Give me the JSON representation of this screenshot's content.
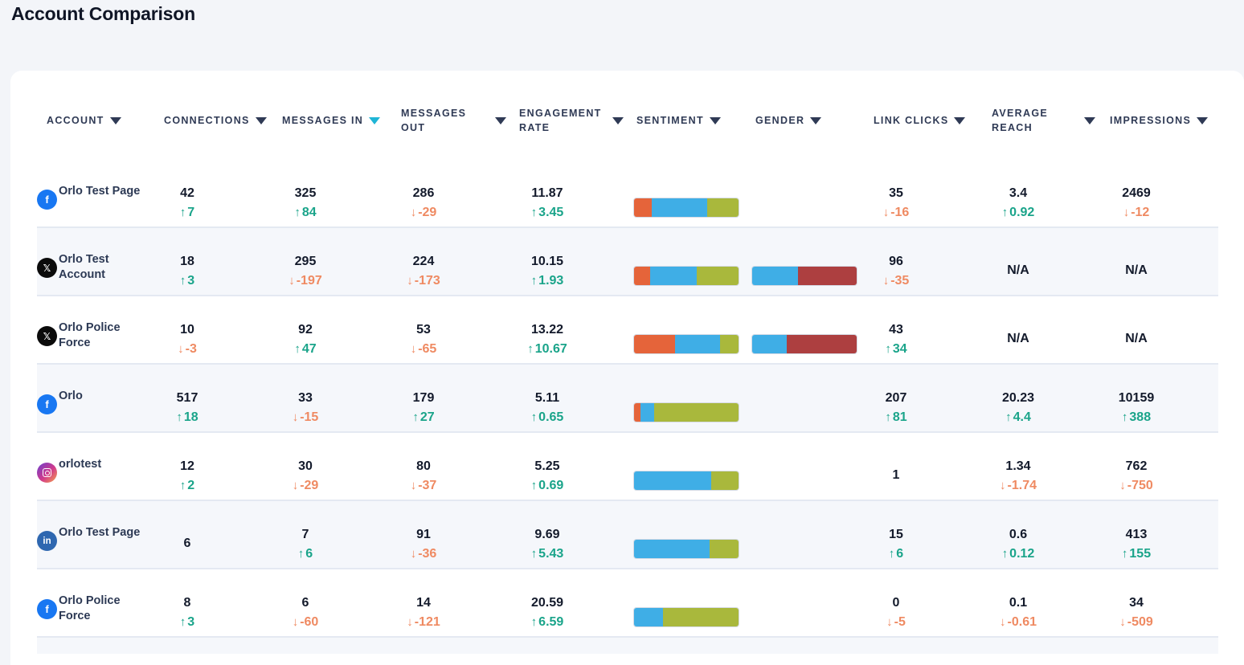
{
  "page": {
    "title": "Account Comparison"
  },
  "colors": {
    "sentiment_negative": "#e5643a",
    "sentiment_neutral": "#3faee6",
    "sentiment_positive": "#a9b83c",
    "gender_male": "#3faee6",
    "gender_female": "#ad3f40",
    "delta_up": "#1aa48a",
    "delta_down": "#ef8a62",
    "sort_active": "#1fb5d6"
  },
  "columns": [
    {
      "key": "account",
      "label": "ACCOUNT",
      "line2": "",
      "active": false
    },
    {
      "key": "connections",
      "label": "CONNECTIONS",
      "line2": "",
      "active": false
    },
    {
      "key": "messages_in",
      "label": "MESSAGES IN",
      "line2": "",
      "active": true
    },
    {
      "key": "messages_out",
      "label": "MESSAGES",
      "line2": "OUT",
      "active": false
    },
    {
      "key": "engagement_rate",
      "label": "ENGAGEMENT",
      "line2": "RATE",
      "active": false
    },
    {
      "key": "sentiment",
      "label": "SENTIMENT",
      "line2": "",
      "active": false
    },
    {
      "key": "gender",
      "label": "GENDER",
      "line2": "",
      "active": false
    },
    {
      "key": "link_clicks",
      "label": "LINK CLICKS",
      "line2": "",
      "active": false
    },
    {
      "key": "average_reach",
      "label": "AVERAGE",
      "line2": "REACH",
      "active": false
    },
    {
      "key": "impressions",
      "label": "IMPRESSIONS",
      "line2": "",
      "active": false
    }
  ],
  "rows": [
    {
      "network": "facebook",
      "icon": "facebook-icon",
      "name": "Orlo Test Page",
      "connections": {
        "value": "42",
        "delta": "7",
        "dir": "up"
      },
      "messages_in": {
        "value": "325",
        "delta": "84",
        "dir": "up"
      },
      "messages_out": {
        "value": "286",
        "delta": "-29",
        "dir": "down"
      },
      "engagement_rate": {
        "value": "11.87",
        "delta": "3.45",
        "dir": "up"
      },
      "sentiment": [
        17,
        53,
        30
      ],
      "gender": null,
      "link_clicks": {
        "value": "35",
        "delta": "-16",
        "dir": "down"
      },
      "average_reach": {
        "value": "3.4",
        "delta": "0.92",
        "dir": "up"
      },
      "impressions": {
        "value": "2469",
        "delta": "-12",
        "dir": "down"
      }
    },
    {
      "network": "x",
      "icon": "x-logo-icon",
      "name": "Orlo Test Account",
      "connections": {
        "value": "18",
        "delta": "3",
        "dir": "up"
      },
      "messages_in": {
        "value": "295",
        "delta": "-197",
        "dir": "down"
      },
      "messages_out": {
        "value": "224",
        "delta": "-173",
        "dir": "down"
      },
      "engagement_rate": {
        "value": "10.15",
        "delta": "1.93",
        "dir": "up"
      },
      "sentiment": [
        15,
        45,
        40
      ],
      "gender": [
        44,
        56
      ],
      "link_clicks": {
        "value": "96",
        "delta": "-35",
        "dir": "down"
      },
      "average_reach": {
        "value": "N/A",
        "delta": "",
        "dir": ""
      },
      "impressions": {
        "value": "N/A",
        "delta": "",
        "dir": ""
      }
    },
    {
      "network": "x",
      "icon": "x-logo-icon",
      "name": "Orlo Police Force",
      "connections": {
        "value": "10",
        "delta": "-3",
        "dir": "down"
      },
      "messages_in": {
        "value": "92",
        "delta": "47",
        "dir": "up"
      },
      "messages_out": {
        "value": "53",
        "delta": "-65",
        "dir": "down"
      },
      "engagement_rate": {
        "value": "13.22",
        "delta": "10.67",
        "dir": "up"
      },
      "sentiment": [
        39,
        43,
        18
      ],
      "gender": [
        33,
        67
      ],
      "link_clicks": {
        "value": "43",
        "delta": "34",
        "dir": "up"
      },
      "average_reach": {
        "value": "N/A",
        "delta": "",
        "dir": ""
      },
      "impressions": {
        "value": "N/A",
        "delta": "",
        "dir": ""
      }
    },
    {
      "network": "facebook",
      "icon": "facebook-icon",
      "name": "Orlo",
      "connections": {
        "value": "517",
        "delta": "18",
        "dir": "up"
      },
      "messages_in": {
        "value": "33",
        "delta": "-15",
        "dir": "down"
      },
      "messages_out": {
        "value": "179",
        "delta": "27",
        "dir": "up"
      },
      "engagement_rate": {
        "value": "5.11",
        "delta": "0.65",
        "dir": "up"
      },
      "sentiment": [
        6,
        13,
        81
      ],
      "gender": null,
      "link_clicks": {
        "value": "207",
        "delta": "81",
        "dir": "up"
      },
      "average_reach": {
        "value": "20.23",
        "delta": "4.4",
        "dir": "up"
      },
      "impressions": {
        "value": "10159",
        "delta": "388",
        "dir": "up"
      }
    },
    {
      "network": "instagram",
      "icon": "instagram-icon",
      "name": "orlotest",
      "connections": {
        "value": "12",
        "delta": "2",
        "dir": "up"
      },
      "messages_in": {
        "value": "30",
        "delta": "-29",
        "dir": "down"
      },
      "messages_out": {
        "value": "80",
        "delta": "-37",
        "dir": "down"
      },
      "engagement_rate": {
        "value": "5.25",
        "delta": "0.69",
        "dir": "up"
      },
      "sentiment": [
        0,
        74,
        26
      ],
      "gender": null,
      "link_clicks": {
        "value": "1",
        "delta": "",
        "dir": ""
      },
      "average_reach": {
        "value": "1.34",
        "delta": "-1.74",
        "dir": "down"
      },
      "impressions": {
        "value": "762",
        "delta": "-750",
        "dir": "down"
      }
    },
    {
      "network": "linkedin",
      "icon": "linkedin-icon",
      "name": "Orlo Test Page",
      "connections": {
        "value": "6",
        "delta": "",
        "dir": ""
      },
      "messages_in": {
        "value": "7",
        "delta": "6",
        "dir": "up"
      },
      "messages_out": {
        "value": "91",
        "delta": "-36",
        "dir": "down"
      },
      "engagement_rate": {
        "value": "9.69",
        "delta": "5.43",
        "dir": "up"
      },
      "sentiment": [
        0,
        72,
        28
      ],
      "gender": null,
      "link_clicks": {
        "value": "15",
        "delta": "6",
        "dir": "up"
      },
      "average_reach": {
        "value": "0.6",
        "delta": "0.12",
        "dir": "up"
      },
      "impressions": {
        "value": "413",
        "delta": "155",
        "dir": "up"
      }
    },
    {
      "network": "facebook",
      "icon": "facebook-icon",
      "name": "Orlo Police Force",
      "connections": {
        "value": "8",
        "delta": "3",
        "dir": "up"
      },
      "messages_in": {
        "value": "6",
        "delta": "-60",
        "dir": "down"
      },
      "messages_out": {
        "value": "14",
        "delta": "-121",
        "dir": "down"
      },
      "engagement_rate": {
        "value": "20.59",
        "delta": "6.59",
        "dir": "up"
      },
      "sentiment": [
        0,
        28,
        72
      ],
      "gender": null,
      "link_clicks": {
        "value": "0",
        "delta": "-5",
        "dir": "down"
      },
      "average_reach": {
        "value": "0.1",
        "delta": "-0.61",
        "dir": "down"
      },
      "impressions": {
        "value": "34",
        "delta": "-509",
        "dir": "down"
      }
    }
  ]
}
